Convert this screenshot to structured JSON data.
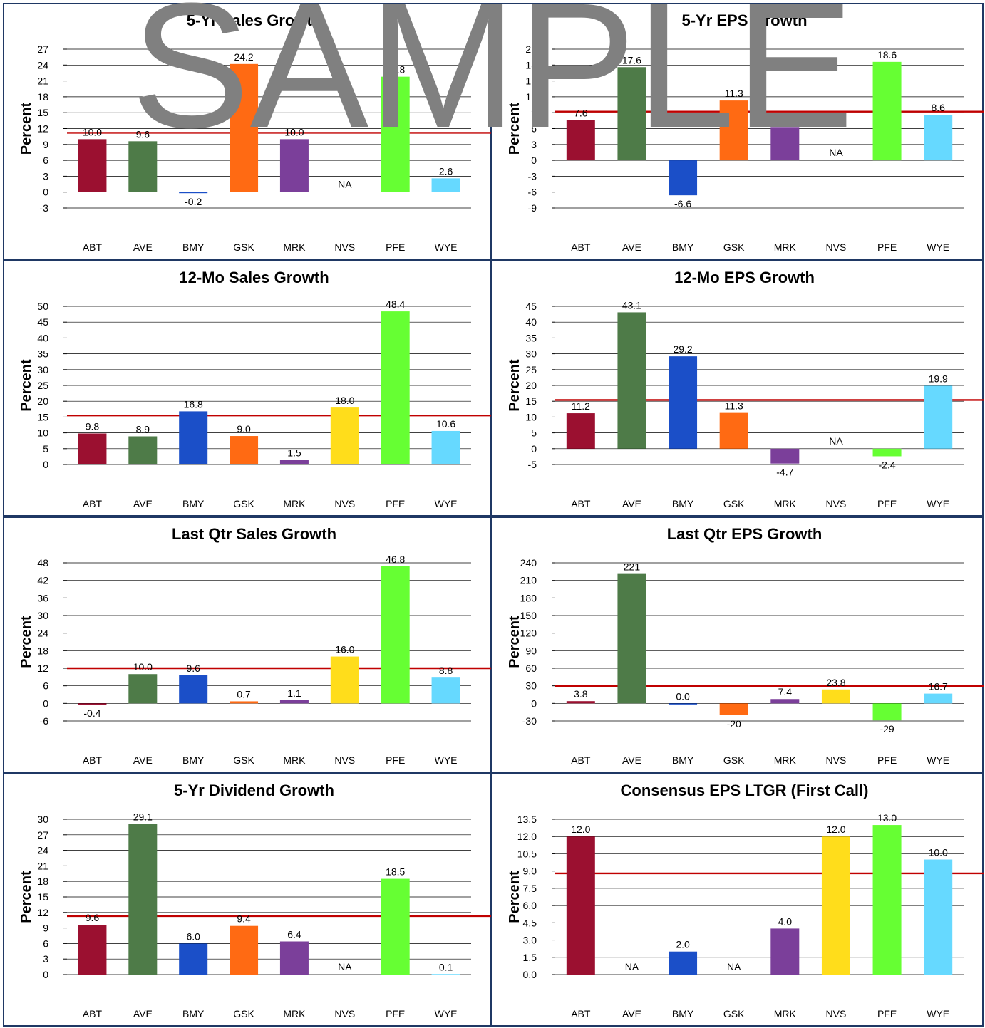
{
  "watermark": "SAMPLE",
  "benchmark_line_color": "#c00000",
  "company_colors": {
    "ABT": "#9b1030",
    "AVE": "#4e7b48",
    "BMY": "#1b4fc8",
    "GSK": "#ff6a13",
    "MRK": "#7b3f9a",
    "NVS": "#ffdd1b",
    "PFE": "#66ff33",
    "WYE": "#66d9ff"
  },
  "chart_data": [
    {
      "type": "bar",
      "title": "5-Yr Sales Growth",
      "ylabel": "Percent",
      "categories": [
        "ABT",
        "AVE",
        "BMY",
        "GSK",
        "MRK",
        "NVS",
        "PFE",
        "WYE"
      ],
      "values": [
        10.0,
        9.6,
        -0.2,
        24.2,
        10.0,
        null,
        21.8,
        2.6
      ],
      "labels": [
        "10.0",
        "9.6",
        "-0.2",
        "24.2",
        "10.0",
        "NA",
        "21.8",
        "2.6"
      ],
      "ylim": [
        -3,
        27
      ],
      "yticks": [
        -3,
        0,
        3,
        6,
        9,
        12,
        15,
        18,
        21,
        24,
        27
      ],
      "benchmark": 11.2,
      "grid": true
    },
    {
      "type": "bar",
      "title": "5-Yr EPS Growth",
      "ylabel": "Percent",
      "categories": [
        "ABT",
        "AVE",
        "BMY",
        "GSK",
        "MRK",
        "NVS",
        "PFE",
        "WYE"
      ],
      "values": [
        7.6,
        17.6,
        -6.6,
        11.3,
        6.3,
        null,
        18.6,
        8.6
      ],
      "labels": [
        "7.6",
        "17.6",
        "-6.6",
        "11.3",
        "6.3",
        "NA",
        "18.6",
        "8.6"
      ],
      "ylim": [
        -9,
        21
      ],
      "yticks": [
        -9,
        -6,
        -3,
        0,
        3,
        6,
        9,
        12,
        15,
        18,
        21
      ],
      "benchmark": 9.2,
      "grid": true
    },
    {
      "type": "bar",
      "title": "12-Mo Sales Growth",
      "ylabel": "Percent",
      "categories": [
        "ABT",
        "AVE",
        "BMY",
        "GSK",
        "MRK",
        "NVS",
        "PFE",
        "WYE"
      ],
      "values": [
        9.8,
        8.9,
        16.8,
        9.0,
        1.5,
        18.0,
        48.4,
        10.6
      ],
      "labels": [
        "9.8",
        "8.9",
        "16.8",
        "9.0",
        "1.5",
        "18.0",
        "48.4",
        "10.6"
      ],
      "ylim": [
        0,
        50
      ],
      "yticks": [
        0,
        5,
        10,
        15,
        20,
        25,
        30,
        35,
        40,
        45,
        50
      ],
      "benchmark": 15.5,
      "grid": true
    },
    {
      "type": "bar",
      "title": "12-Mo EPS Growth",
      "ylabel": "Percent",
      "categories": [
        "ABT",
        "AVE",
        "BMY",
        "GSK",
        "MRK",
        "NVS",
        "PFE",
        "WYE"
      ],
      "values": [
        11.2,
        43.1,
        29.2,
        11.3,
        -4.7,
        null,
        -2.4,
        19.9
      ],
      "labels": [
        "11.2",
        "43.1",
        "29.2",
        "11.3",
        "-4.7",
        "NA",
        "-2.4",
        "19.9"
      ],
      "ylim": [
        -5,
        45
      ],
      "yticks": [
        -5,
        0,
        5,
        10,
        15,
        20,
        25,
        30,
        35,
        40,
        45
      ],
      "benchmark": 15.4,
      "grid": true
    },
    {
      "type": "bar",
      "title": "Last Qtr Sales Growth",
      "ylabel": "Percent",
      "categories": [
        "ABT",
        "AVE",
        "BMY",
        "GSK",
        "MRK",
        "NVS",
        "PFE",
        "WYE"
      ],
      "values": [
        -0.4,
        10.0,
        9.6,
        0.7,
        1.1,
        16.0,
        46.8,
        8.8
      ],
      "labels": [
        "-0.4",
        "10.0",
        "9.6",
        "0.7",
        "1.1",
        "16.0",
        "46.8",
        "8.8"
      ],
      "ylim": [
        -6,
        48
      ],
      "yticks": [
        -6,
        0,
        6,
        12,
        18,
        24,
        30,
        36,
        42,
        48
      ],
      "benchmark": 12.0,
      "grid": true
    },
    {
      "type": "bar",
      "title": "Last Qtr EPS Growth",
      "ylabel": "Percent",
      "categories": [
        "ABT",
        "AVE",
        "BMY",
        "GSK",
        "MRK",
        "NVS",
        "PFE",
        "WYE"
      ],
      "values": [
        3.8,
        221,
        0.0,
        -20,
        7.4,
        23.8,
        -29,
        16.7
      ],
      "labels": [
        "3.8",
        "221",
        "0.0",
        "-20",
        "7.4",
        "23.8",
        "-29",
        "16.7"
      ],
      "ylim": [
        -30,
        240
      ],
      "yticks": [
        -30,
        0,
        30,
        60,
        90,
        120,
        150,
        180,
        210,
        240
      ],
      "benchmark": 29.5,
      "grid": true
    },
    {
      "type": "bar",
      "title": "5-Yr Dividend Growth",
      "ylabel": "Percent",
      "categories": [
        "ABT",
        "AVE",
        "BMY",
        "GSK",
        "MRK",
        "NVS",
        "PFE",
        "WYE"
      ],
      "values": [
        9.6,
        29.1,
        6.0,
        9.4,
        6.4,
        null,
        18.5,
        0.1
      ],
      "labels": [
        "9.6",
        "29.1",
        "6.0",
        "9.4",
        "6.4",
        "NA",
        "18.5",
        "0.1"
      ],
      "ylim": [
        0,
        30
      ],
      "yticks": [
        0,
        3,
        6,
        9,
        12,
        15,
        18,
        21,
        24,
        27,
        30
      ],
      "benchmark": 11.3,
      "grid": true
    },
    {
      "type": "bar",
      "title": "Consensus EPS LTGR (First Call)",
      "ylabel": "Percent",
      "categories": [
        "ABT",
        "AVE",
        "BMY",
        "GSK",
        "MRK",
        "NVS",
        "PFE",
        "WYE"
      ],
      "values": [
        12.0,
        null,
        2.0,
        null,
        4.0,
        12.0,
        13.0,
        10.0
      ],
      "labels": [
        "12.0",
        "NA",
        "2.0",
        "NA",
        "4.0",
        "12.0",
        "13.0",
        "10.0"
      ],
      "ylim": [
        0,
        13.5
      ],
      "yticks": [
        0.0,
        1.5,
        3.0,
        4.5,
        6.0,
        7.5,
        9.0,
        10.5,
        12.0,
        13.5
      ],
      "yticks_text": [
        "0.0",
        "1.5",
        "3.0",
        "4.5",
        "6.0",
        "7.5",
        "9.0",
        "10.5",
        "12.0",
        "13.5"
      ],
      "benchmark": 8.8,
      "grid": true
    }
  ]
}
